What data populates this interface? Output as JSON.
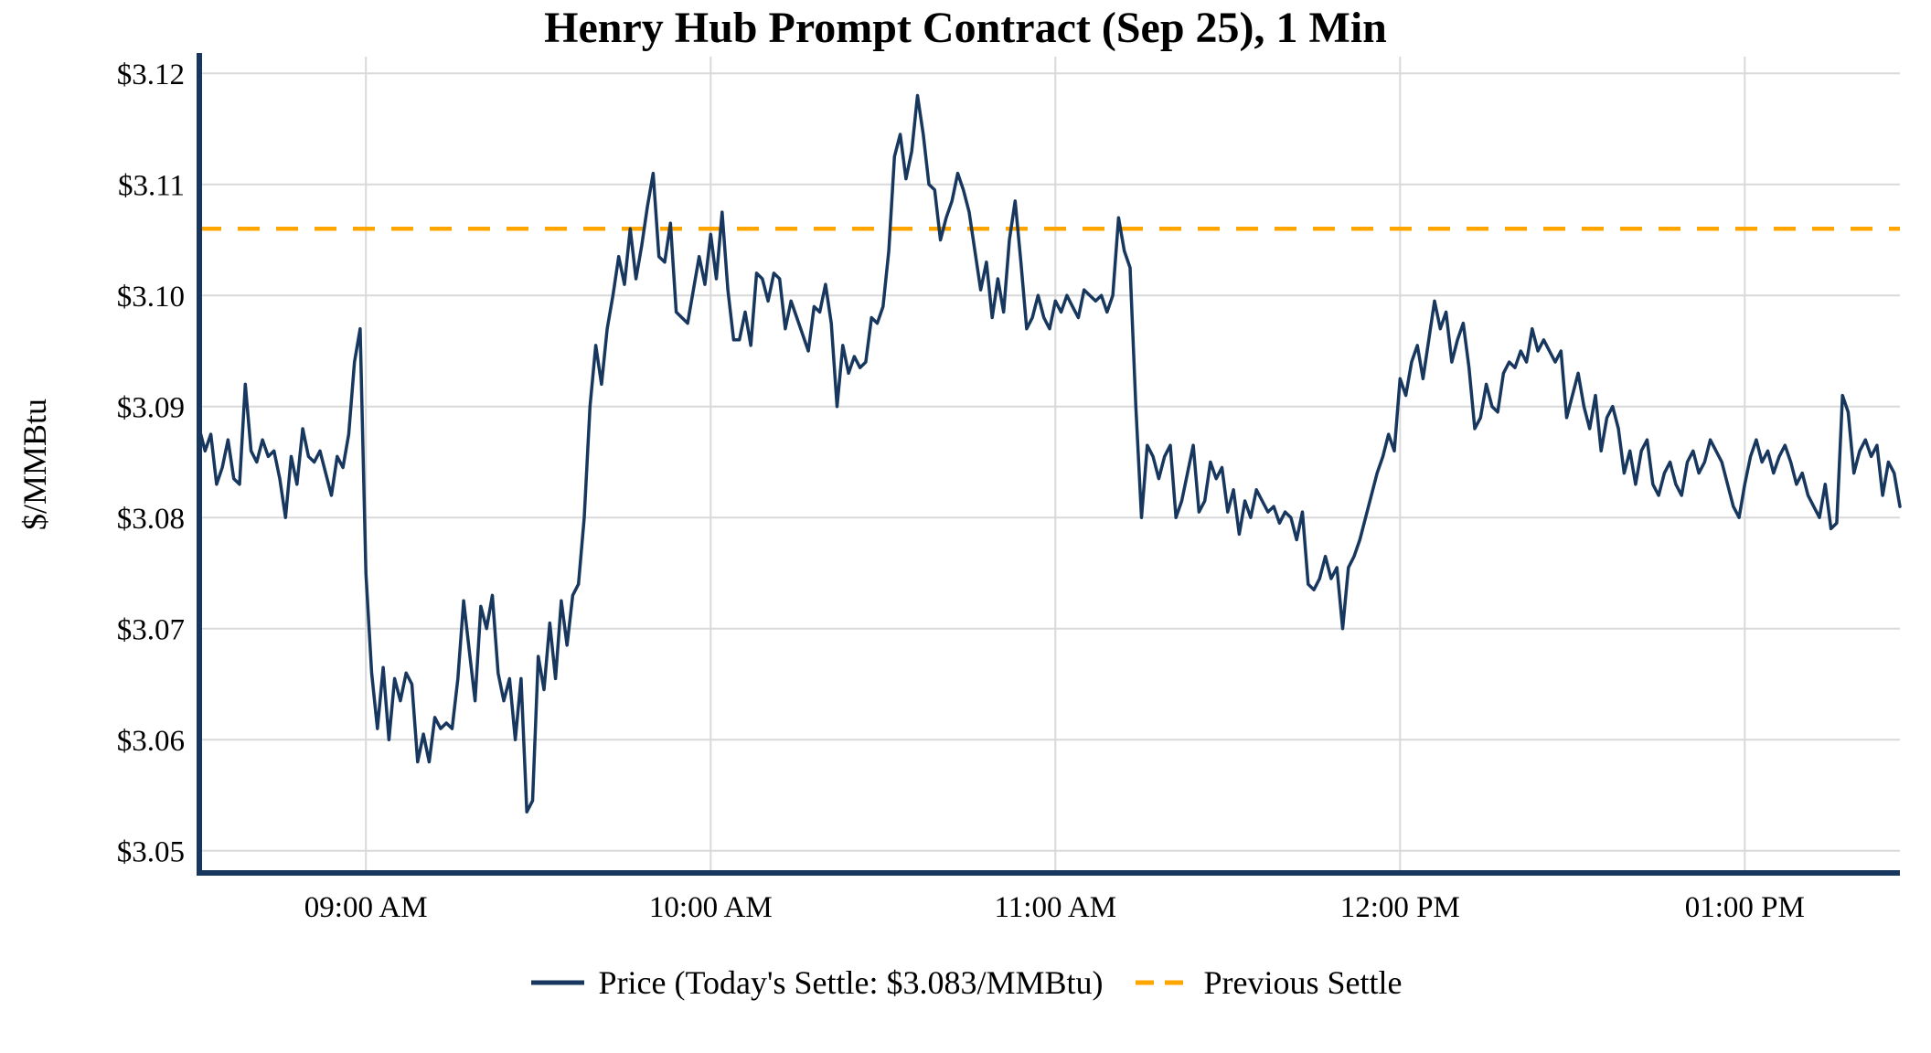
{
  "colors": {
    "price_line": "#17375E",
    "axis": "#17375E",
    "previous_settle": "#FFA500",
    "grid": "#D9D9D9",
    "text": "#000000",
    "background": "#FFFFFF"
  },
  "chart_data": {
    "type": "line",
    "title": "Henry Hub Prompt Contract (Sep 25), 1 Min",
    "ylabel": "$/MMBtu",
    "xlabel": "",
    "grid": true,
    "legend_position": "bottom",
    "ylim": [
      3.05,
      3.12
    ],
    "previous_settle": 3.106,
    "todays_settle": 3.083,
    "legend": {
      "price": "Price (Today's Settle: $3.083/MMBtu)",
      "previous_settle": "Previous Settle"
    },
    "y_ticks": [
      {
        "value": 3.05,
        "label": "$3.05"
      },
      {
        "value": 3.06,
        "label": "$3.06"
      },
      {
        "value": 3.07,
        "label": "$3.07"
      },
      {
        "value": 3.08,
        "label": "$3.08"
      },
      {
        "value": 3.09,
        "label": "$3.09"
      },
      {
        "value": 3.1,
        "label": "$3.10"
      },
      {
        "value": 3.11,
        "label": "$3.11"
      },
      {
        "value": 3.12,
        "label": "$3.12"
      }
    ],
    "x_ticks": [
      {
        "minute": 29,
        "label": "09:00 AM"
      },
      {
        "minute": 89,
        "label": "10:00 AM"
      },
      {
        "minute": 149,
        "label": "11:00 AM"
      },
      {
        "minute": 209,
        "label": "12:00 PM"
      },
      {
        "minute": 269,
        "label": "01:00 PM"
      }
    ],
    "x_minutes_total": 296,
    "series": [
      {
        "name": "Price",
        "values": [
          3.088,
          3.086,
          3.0875,
          3.083,
          3.0845,
          3.087,
          3.0835,
          3.083,
          3.092,
          3.086,
          3.085,
          3.087,
          3.0855,
          3.086,
          3.0835,
          3.08,
          3.0855,
          3.083,
          3.088,
          3.0855,
          3.085,
          3.086,
          3.084,
          3.082,
          3.0855,
          3.0845,
          3.0875,
          3.094,
          3.097,
          3.075,
          3.066,
          3.061,
          3.0665,
          3.06,
          3.0655,
          3.0635,
          3.066,
          3.065,
          3.058,
          3.0605,
          3.058,
          3.062,
          3.061,
          3.0615,
          3.061,
          3.0655,
          3.0725,
          3.068,
          3.0635,
          3.072,
          3.07,
          3.073,
          3.066,
          3.0635,
          3.0655,
          3.06,
          3.0655,
          3.0535,
          3.0545,
          3.0675,
          3.0645,
          3.0705,
          3.0655,
          3.0725,
          3.0685,
          3.073,
          3.074,
          3.08,
          3.09,
          3.0955,
          3.092,
          3.097,
          3.1,
          3.1035,
          3.101,
          3.106,
          3.1015,
          3.1045,
          3.108,
          3.111,
          3.1035,
          3.103,
          3.1065,
          3.0985,
          3.098,
          3.0975,
          3.1005,
          3.1035,
          3.101,
          3.1055,
          3.1015,
          3.1075,
          3.1005,
          3.096,
          3.096,
          3.0985,
          3.0955,
          3.102,
          3.1015,
          3.0995,
          3.102,
          3.1015,
          3.097,
          3.0995,
          3.098,
          3.0965,
          3.095,
          3.099,
          3.0985,
          3.101,
          3.0975,
          3.09,
          3.0955,
          3.093,
          3.0945,
          3.0935,
          3.094,
          3.098,
          3.0975,
          3.099,
          3.104,
          3.1125,
          3.1145,
          3.1105,
          3.113,
          3.118,
          3.1145,
          3.11,
          3.1095,
          3.105,
          3.107,
          3.1085,
          3.111,
          3.1095,
          3.1075,
          3.104,
          3.1005,
          3.103,
          3.098,
          3.1015,
          3.0985,
          3.105,
          3.1085,
          3.103,
          3.097,
          3.098,
          3.1,
          3.098,
          3.097,
          3.0995,
          3.0985,
          3.1,
          3.099,
          3.098,
          3.1005,
          3.1,
          3.0995,
          3.1,
          3.0985,
          3.1,
          3.107,
          3.104,
          3.1025,
          3.09,
          3.08,
          3.0865,
          3.0855,
          3.0835,
          3.0855,
          3.0865,
          3.08,
          3.0815,
          3.084,
          3.0865,
          3.0805,
          3.0815,
          3.085,
          3.0835,
          3.0845,
          3.0805,
          3.0825,
          3.0785,
          3.0815,
          3.08,
          3.0825,
          3.0815,
          3.0805,
          3.081,
          3.0795,
          3.0805,
          3.08,
          3.078,
          3.0805,
          3.074,
          3.0735,
          3.0745,
          3.0765,
          3.0745,
          3.0755,
          3.07,
          3.0755,
          3.0765,
          3.078,
          3.08,
          3.082,
          3.084,
          3.0855,
          3.0875,
          3.086,
          3.0925,
          3.091,
          3.094,
          3.0955,
          3.0925,
          3.096,
          3.0995,
          3.097,
          3.0985,
          3.094,
          3.096,
          3.0975,
          3.0935,
          3.088,
          3.089,
          3.092,
          3.09,
          3.0895,
          3.093,
          3.094,
          3.0935,
          3.095,
          3.094,
          3.097,
          3.095,
          3.096,
          3.095,
          3.094,
          3.095,
          3.089,
          3.091,
          3.093,
          3.09,
          3.088,
          3.091,
          3.086,
          3.089,
          3.09,
          3.088,
          3.084,
          3.086,
          3.083,
          3.086,
          3.087,
          3.083,
          3.082,
          3.084,
          3.085,
          3.083,
          3.082,
          3.085,
          3.086,
          3.084,
          3.085,
          3.087,
          3.086,
          3.085,
          3.083,
          3.081,
          3.08,
          3.083,
          3.0855,
          3.087,
          3.085,
          3.086,
          3.084,
          3.0855,
          3.0865,
          3.085,
          3.083,
          3.084,
          3.082,
          3.081,
          3.08,
          3.083,
          3.079,
          3.0795,
          3.091,
          3.0895,
          3.084,
          3.086,
          3.087,
          3.0855,
          3.0865,
          3.082,
          3.085,
          3.084,
          3.081
        ]
      }
    ]
  }
}
